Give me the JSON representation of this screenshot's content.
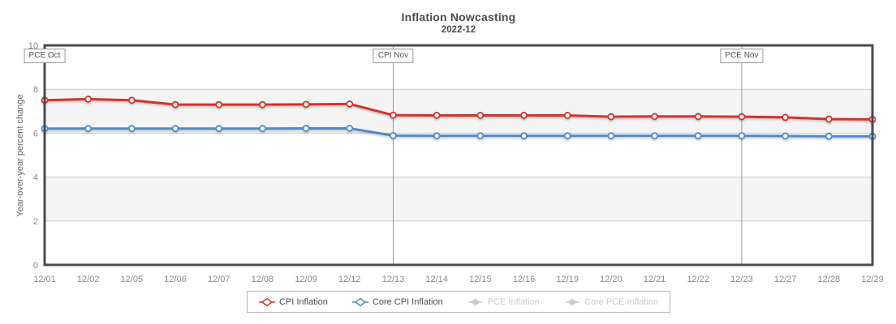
{
  "chart_data": {
    "type": "line",
    "title": "Inflation Nowcasting",
    "subtitle": "2022-12",
    "xlabel": "",
    "ylabel": "Year-over-year percent change",
    "ylim": [
      0,
      10
    ],
    "yticks": [
      0,
      2,
      4,
      6,
      8,
      10
    ],
    "grid": "horizontal bands shaded between 2-4 and 6-8",
    "legend_position": "bottom",
    "categories": [
      "12/01",
      "12/02",
      "12/05",
      "12/06",
      "12/07",
      "12/08",
      "12/09",
      "12/12",
      "12/13",
      "12/14",
      "12/15",
      "12/16",
      "12/19",
      "12/20",
      "12/21",
      "12/22",
      "12/23",
      "12/27",
      "12/28",
      "12/29"
    ],
    "series": [
      {
        "name": "CPI Inflation",
        "color": "#d2342d",
        "visible": true,
        "values": [
          7.5,
          7.55,
          7.5,
          7.3,
          7.3,
          7.3,
          7.31,
          7.33,
          6.82,
          6.81,
          6.81,
          6.81,
          6.81,
          6.75,
          6.76,
          6.76,
          6.75,
          6.72,
          6.64,
          6.63
        ]
      },
      {
        "name": "Core CPI Inflation",
        "color": "#4f8bc9",
        "visible": true,
        "values": [
          6.21,
          6.21,
          6.21,
          6.21,
          6.21,
          6.21,
          6.22,
          6.22,
          5.89,
          5.88,
          5.88,
          5.88,
          5.88,
          5.88,
          5.88,
          5.88,
          5.88,
          5.87,
          5.86,
          5.86
        ]
      },
      {
        "name": "PCE Inflation",
        "color": "#cccccc",
        "visible": false,
        "values": []
      },
      {
        "name": "Core PCE Inflation",
        "color": "#cccccc",
        "visible": false,
        "values": []
      }
    ],
    "annotations": [
      {
        "label": "PCE Oct",
        "category": "12/01"
      },
      {
        "label": "CPI Nov",
        "category": "12/13"
      },
      {
        "label": "PCE Nov",
        "category": "12/23"
      }
    ]
  },
  "colors": {
    "band": "#f4f4f4",
    "gridline": "#cccccc",
    "plot_border": "#4b4b4b",
    "annotation_line": "#999999",
    "tick_text": "#8a8a8a",
    "title_text": "#4d4d4d",
    "inactive_legend": "#cccccc",
    "marker_fill": "#ffffff"
  }
}
